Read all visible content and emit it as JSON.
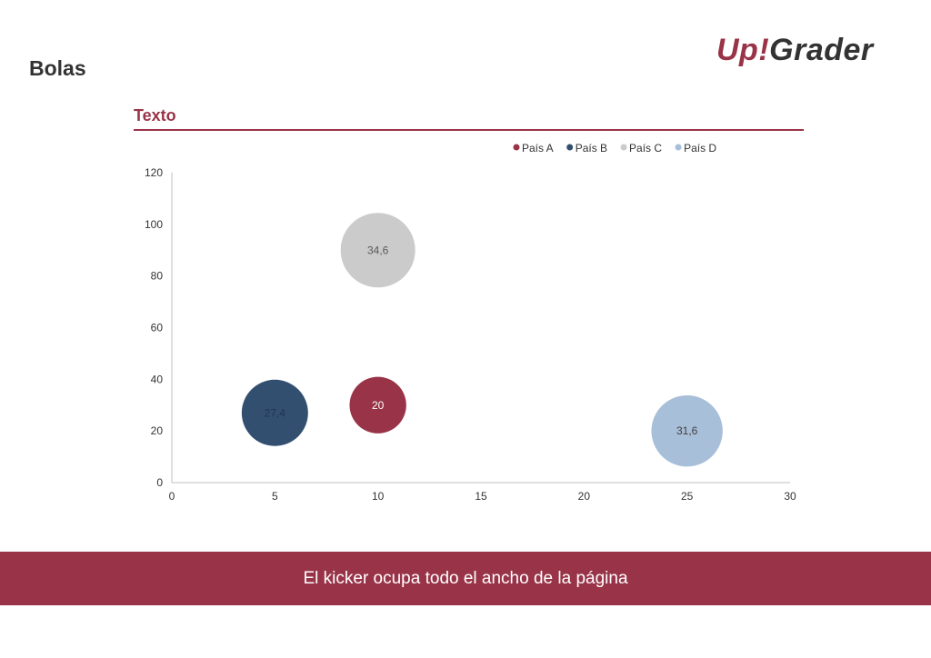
{
  "page": {
    "title": "Bolas",
    "logo": {
      "part_a": "Up!",
      "part_b": "Grader"
    }
  },
  "kicker": {
    "text": "El kicker ocupa todo el ancho de la página",
    "background": "#993448"
  },
  "colors": {
    "accent": "#993448",
    "axis": "#bfbfbf",
    "text": "#333333"
  },
  "chart_data": {
    "type": "bubble",
    "title": "Texto",
    "xlabel": "",
    "ylabel": "",
    "xlim": [
      0,
      30
    ],
    "ylim": [
      0,
      120
    ],
    "x_ticks": [
      0,
      5,
      10,
      15,
      20,
      25,
      30
    ],
    "y_ticks": [
      0,
      20,
      40,
      60,
      80,
      100,
      120
    ],
    "grid": false,
    "legend_position": "top-right",
    "series": [
      {
        "name": "País A",
        "color": "#993448",
        "label_color": "#ffffff",
        "points": [
          {
            "x": 10,
            "y": 30,
            "size": 20,
            "label": "20"
          }
        ]
      },
      {
        "name": "País B",
        "color": "#334f70",
        "label_color": "#1f3552",
        "points": [
          {
            "x": 5,
            "y": 27,
            "size": 27.4,
            "label": "27,4"
          }
        ]
      },
      {
        "name": "País C",
        "color": "#cbcbcb",
        "label_color": "#595959",
        "points": [
          {
            "x": 10,
            "y": 90,
            "size": 34.6,
            "label": "34,6"
          }
        ]
      },
      {
        "name": "País D",
        "color": "#a8bfd9",
        "label_color": "#404040",
        "points": [
          {
            "x": 25,
            "y": 20,
            "size": 31.6,
            "label": "31,6"
          }
        ]
      }
    ]
  }
}
